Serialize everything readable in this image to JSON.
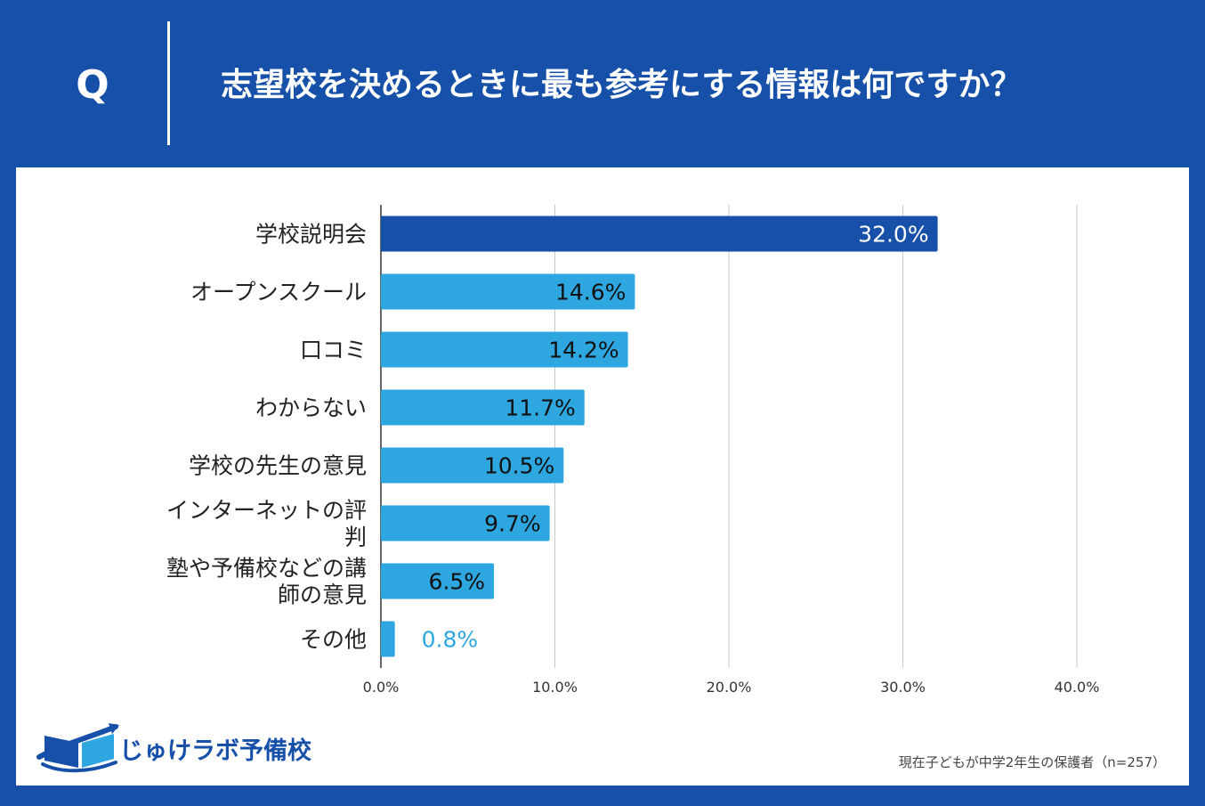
{
  "header": {
    "q_mark": "Q",
    "question": "志望校を決めるときに最も参考にする情報は何ですか？"
  },
  "brand": {
    "name": "じゅけラボ予備校",
    "primary_color": "#1650a8",
    "bar_color": "#2ea6e0"
  },
  "note": "現在子どもが中学2年生の保護者（n=257）",
  "chart_data": {
    "type": "bar",
    "orientation": "horizontal",
    "categories": [
      "学校説明会",
      "オープンスクール",
      "口コミ",
      "わからない",
      "学校の先生の意見",
      "インターネットの評判",
      "塾や予備校などの講師の意見",
      "その他"
    ],
    "category_lines": [
      [
        "学校説明会"
      ],
      [
        "オープンスクール"
      ],
      [
        "口コミ"
      ],
      [
        "わからない"
      ],
      [
        "学校の先生の意見"
      ],
      [
        "インターネットの評",
        "判"
      ],
      [
        "塾や予備校などの講",
        "師の意見"
      ],
      [
        "その他"
      ]
    ],
    "values": [
      32.0,
      14.6,
      14.2,
      11.7,
      10.5,
      9.7,
      6.5,
      0.8
    ],
    "value_labels": [
      "32.0%",
      "14.6%",
      "14.2%",
      "11.7%",
      "10.5%",
      "9.7%",
      "6.5%",
      "0.8%"
    ],
    "highlight_index": 0,
    "xlim": [
      0,
      40
    ],
    "xticks": [
      0,
      10,
      20,
      30,
      40
    ],
    "xtick_labels": [
      "0.0%",
      "10.0%",
      "20.0%",
      "30.0%",
      "40.0%"
    ],
    "grid": true
  }
}
